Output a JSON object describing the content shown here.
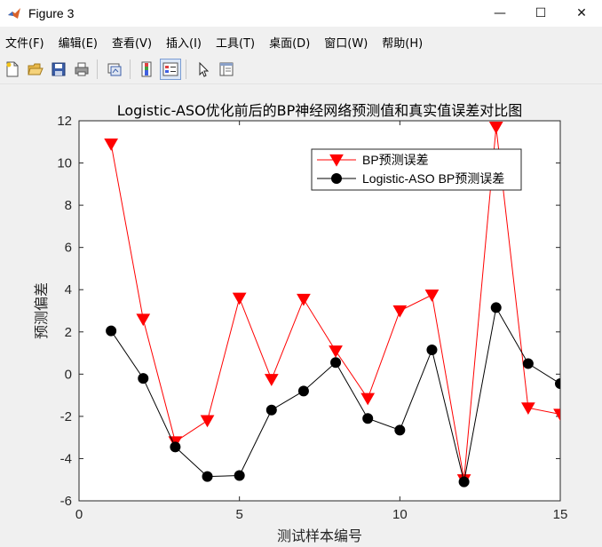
{
  "window": {
    "title": "Figure 3",
    "minimize": "—",
    "maximize": "☐",
    "close": "✕"
  },
  "menu": [
    "文件(F)",
    "编辑(E)",
    "查看(V)",
    "插入(I)",
    "工具(T)",
    "桌面(D)",
    "窗口(W)",
    "帮助(H)"
  ],
  "toolbar": {
    "icons": [
      "new-figure-icon",
      "open-file-icon",
      "save-icon",
      "print-icon",
      "link-plot-icon",
      "colorbar-icon",
      "legend-icon",
      "pointer-icon",
      "property-editor-icon"
    ]
  },
  "chart_data": {
    "type": "line",
    "title": "Logistic-ASO优化前后的BP神经网络预测值和真实值误差对比图",
    "xlabel": "测试样本编号",
    "ylabel": "预测偏差",
    "xlim": [
      0,
      15
    ],
    "ylim": [
      -6,
      12
    ],
    "xticks": [
      0,
      5,
      10,
      15
    ],
    "yticks": [
      -6,
      -4,
      -2,
      0,
      2,
      4,
      6,
      8,
      10,
      12
    ],
    "grid": false,
    "legend_position": "top-right",
    "x": [
      1,
      2,
      3,
      4,
      5,
      6,
      7,
      8,
      9,
      10,
      11,
      12,
      13,
      14,
      15
    ],
    "series": [
      {
        "name": "BP预测误差",
        "color": "#ff0000",
        "marker": "triangle-down",
        "values": [
          10.9,
          2.6,
          -3.2,
          -2.2,
          3.6,
          -0.25,
          3.55,
          1.1,
          -1.15,
          3.0,
          3.75,
          -5.0,
          11.7,
          -1.6,
          -1.9
        ]
      },
      {
        "name": "Logistic-ASO BP预测误差",
        "color": "#000000",
        "marker": "circle",
        "values": [
          2.05,
          -0.2,
          -3.45,
          -4.85,
          -4.8,
          -1.7,
          -0.8,
          0.55,
          -2.1,
          -2.65,
          1.15,
          -5.1,
          3.15,
          0.5,
          -0.45
        ]
      }
    ]
  }
}
